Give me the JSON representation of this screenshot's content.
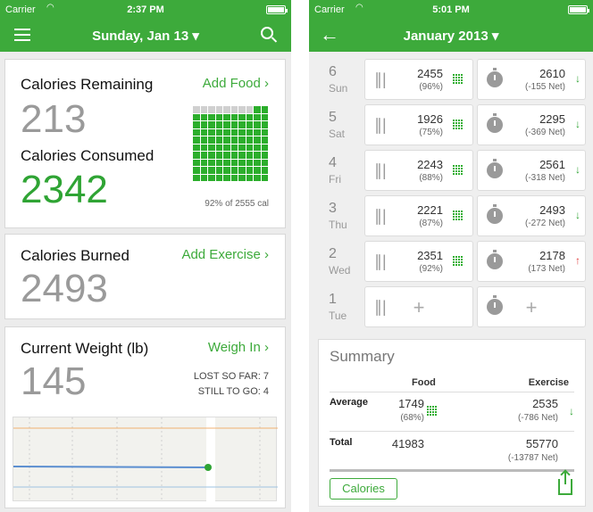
{
  "left": {
    "status": {
      "carrier": "Carrier",
      "time": "2:37 PM"
    },
    "nav": {
      "title": "Sunday, Jan 13 ▾"
    },
    "remaining": {
      "heading": "Calories Remaining",
      "action": "Add Food",
      "value": "213",
      "consumed_heading": "Calories Consumed",
      "consumed_value": "2342",
      "percent_text": "92% of 2555 cal",
      "filled_fraction": 0.92
    },
    "burned": {
      "heading": "Calories Burned",
      "action": "Add Exercise",
      "value": "2493"
    },
    "weight": {
      "heading": "Current Weight (lb)",
      "action": "Weigh In",
      "value": "145",
      "lost": "LOST SO FAR: 7",
      "togo": "STILL TO GO: 4"
    }
  },
  "right": {
    "status": {
      "carrier": "Carrier",
      "time": "5:01 PM"
    },
    "nav": {
      "title": "January 2013 ▾"
    },
    "days": [
      {
        "day": "6",
        "name": "Sun",
        "food": "2455",
        "food_pct": "(96%)",
        "ex": "2610",
        "ex_net": "(-155 Net)",
        "dir": "down"
      },
      {
        "day": "5",
        "name": "Sat",
        "food": "1926",
        "food_pct": "(75%)",
        "ex": "2295",
        "ex_net": "(-369 Net)",
        "dir": "down"
      },
      {
        "day": "4",
        "name": "Fri",
        "food": "2243",
        "food_pct": "(88%)",
        "ex": "2561",
        "ex_net": "(-318 Net)",
        "dir": "down"
      },
      {
        "day": "3",
        "name": "Thu",
        "food": "2221",
        "food_pct": "(87%)",
        "ex": "2493",
        "ex_net": "(-272 Net)",
        "dir": "down"
      },
      {
        "day": "2",
        "name": "Wed",
        "food": "2351",
        "food_pct": "(92%)",
        "ex": "2178",
        "ex_net": "(173 Net)",
        "dir": "up"
      },
      {
        "day": "1",
        "name": "Tue",
        "food": "",
        "food_pct": "",
        "ex": "",
        "ex_net": "",
        "dir": "none"
      }
    ],
    "summary": {
      "title": "Summary",
      "col_food": "Food",
      "col_ex": "Exercise",
      "avg_label": "Average",
      "avg_food": "1749",
      "avg_food_pct": "(68%)",
      "avg_ex": "2535",
      "avg_ex_net": "(-786  Net)",
      "total_label": "Total",
      "total_food": "41983",
      "total_ex": "55770",
      "total_ex_net": "(-13787  Net)",
      "button": "Calories"
    }
  },
  "colors": {
    "brand": "#3daa3b"
  }
}
